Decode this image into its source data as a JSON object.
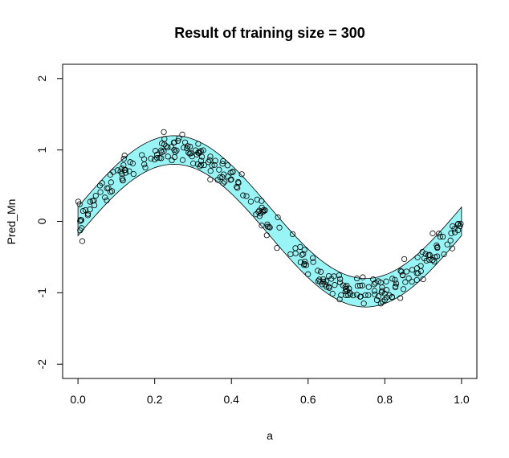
{
  "chart_data": {
    "type": "scatter",
    "title": "Result of training size = 300",
    "xlabel": "a",
    "ylabel": "Pred_Mn",
    "xlim": [
      -0.04,
      1.04
    ],
    "ylim": [
      -2.2,
      2.2
    ],
    "xticks": [
      0.0,
      0.2,
      0.4,
      0.6,
      0.8,
      1.0
    ],
    "xtick_labels": [
      "0.0",
      "0.2",
      "0.4",
      "0.6",
      "0.8",
      "1.0"
    ],
    "yticks": [
      -2,
      -1,
      0,
      1,
      2
    ],
    "ytick_labels": [
      "-2",
      "-1",
      "0",
      "1",
      "2"
    ],
    "grid": false,
    "band": {
      "function": "sin(2*pi*a)",
      "half_width": 0.2,
      "x_range": [
        0,
        1
      ],
      "color": "#99f5f5"
    },
    "points": {
      "count": 300,
      "function": "sin(2*pi*a) + noise",
      "noise_sd": 0.1,
      "marker": "open-circle",
      "color": "#000000"
    }
  }
}
